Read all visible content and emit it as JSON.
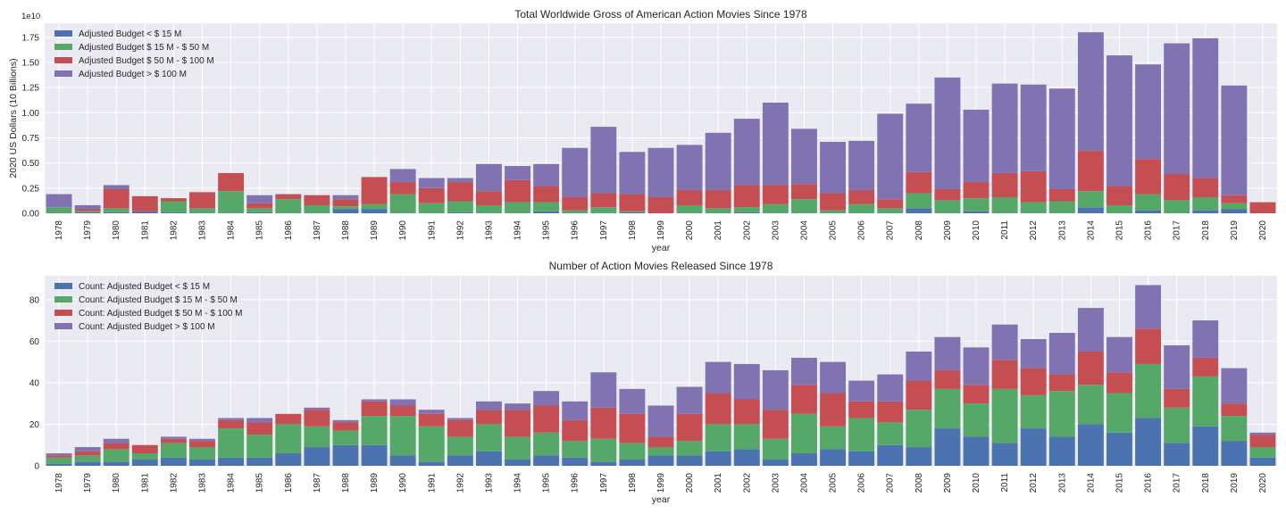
{
  "chart_data": [
    {
      "type": "bar",
      "stacked": true,
      "title": "Total Worldwide Gross of American Action Movies Since 1978",
      "xlabel": "year",
      "ylabel": "2020 US Dollars (10 Billions)",
      "offset_label": "1e10",
      "ylim": [
        0,
        1.89
      ],
      "yticks": [
        "0.00",
        "0.25",
        "0.50",
        "0.75",
        "1.00",
        "1.25",
        "1.50",
        "1.75"
      ],
      "grid": true,
      "legend_position": "top-left",
      "categories": [
        "1978",
        "1979",
        "1980",
        "1981",
        "1982",
        "1983",
        "1984",
        "1985",
        "1986",
        "1987",
        "1988",
        "1989",
        "1990",
        "1991",
        "1992",
        "1993",
        "1994",
        "1995",
        "1996",
        "1997",
        "1998",
        "1999",
        "2000",
        "2001",
        "2002",
        "2003",
        "2004",
        "2005",
        "2006",
        "2007",
        "2008",
        "2009",
        "2010",
        "2011",
        "2012",
        "2013",
        "2014",
        "2015",
        "2016",
        "2017",
        "2018",
        "2019",
        "2020"
      ],
      "series": [
        {
          "name": "Adjusted Budget < $ 15 M",
          "color": "#4c72b0",
          "values": [
            0.0,
            0.01,
            0.01,
            0.02,
            0.01,
            0.0,
            0.0,
            0.01,
            0.0,
            0.0,
            0.04,
            0.04,
            0.0,
            0.0,
            0.01,
            0.0,
            0.0,
            0.02,
            0.0,
            0.0,
            0.01,
            0.0,
            0.0,
            0.0,
            0.01,
            0.0,
            0.0,
            0.0,
            0.0,
            0.0,
            0.05,
            0.0,
            0.02,
            0.0,
            0.0,
            0.0,
            0.06,
            0.0,
            0.03,
            0.0,
            0.03,
            0.04,
            0.0
          ]
        },
        {
          "name": "Adjusted Budget $ 15 M - $ 50 M",
          "color": "#55a868",
          "values": [
            0.06,
            0.01,
            0.04,
            0.0,
            0.11,
            0.05,
            0.22,
            0.04,
            0.14,
            0.08,
            0.03,
            0.05,
            0.19,
            0.1,
            0.11,
            0.08,
            0.11,
            0.09,
            0.03,
            0.06,
            0.01,
            0.0,
            0.08,
            0.05,
            0.05,
            0.09,
            0.14,
            0.03,
            0.09,
            0.05,
            0.15,
            0.13,
            0.13,
            0.16,
            0.11,
            0.12,
            0.16,
            0.08,
            0.16,
            0.13,
            0.13,
            0.06,
            0.0
          ]
        },
        {
          "name": "Adjusted Budget $ 50 M - $ 100 M",
          "color": "#c44e52",
          "values": [
            0.0,
            0.02,
            0.19,
            0.15,
            0.03,
            0.16,
            0.18,
            0.05,
            0.05,
            0.1,
            0.07,
            0.27,
            0.12,
            0.15,
            0.19,
            0.14,
            0.22,
            0.16,
            0.13,
            0.14,
            0.17,
            0.16,
            0.15,
            0.18,
            0.22,
            0.19,
            0.15,
            0.17,
            0.14,
            0.09,
            0.21,
            0.11,
            0.16,
            0.24,
            0.31,
            0.12,
            0.4,
            0.19,
            0.35,
            0.26,
            0.19,
            0.08,
            0.11
          ]
        },
        {
          "name": "Adjusted Budget > $ 100 M",
          "color": "#8172b2",
          "values": [
            0.13,
            0.04,
            0.04,
            0.0,
            0.0,
            0.0,
            0.0,
            0.08,
            0.0,
            0.0,
            0.04,
            0.0,
            0.13,
            0.1,
            0.04,
            0.27,
            0.14,
            0.22,
            0.49,
            0.66,
            0.42,
            0.49,
            0.45,
            0.57,
            0.66,
            0.82,
            0.55,
            0.51,
            0.49,
            0.85,
            0.68,
            1.11,
            0.72,
            0.89,
            0.86,
            1.0,
            1.18,
            1.3,
            0.94,
            1.3,
            1.39,
            1.09,
            0.0
          ]
        }
      ]
    },
    {
      "type": "bar",
      "stacked": true,
      "title": "Number of Action Movies Released Since 1978",
      "xlabel": "year",
      "ylabel": "",
      "ylim": [
        0,
        91.5
      ],
      "yticks": [
        "0",
        "20",
        "40",
        "60",
        "80"
      ],
      "grid": true,
      "legend_position": "top-left",
      "categories": [
        "1978",
        "1979",
        "1980",
        "1981",
        "1982",
        "1983",
        "1984",
        "1985",
        "1986",
        "1987",
        "1988",
        "1989",
        "1990",
        "1991",
        "1992",
        "1993",
        "1994",
        "1995",
        "1996",
        "1997",
        "1998",
        "1999",
        "2000",
        "2001",
        "2002",
        "2003",
        "2004",
        "2005",
        "2006",
        "2007",
        "2008",
        "2009",
        "2010",
        "2011",
        "2012",
        "2013",
        "2014",
        "2015",
        "2016",
        "2017",
        "2018",
        "2019",
        "2020"
      ],
      "series": [
        {
          "name": "Count: Adjusted Budget < $ 15 M",
          "color": "#4c72b0",
          "values": [
            1,
            2,
            2,
            3,
            4,
            3,
            4,
            4,
            6,
            9,
            10,
            10,
            5,
            2,
            5,
            7,
            3,
            5,
            4,
            2,
            3,
            5,
            5,
            7,
            8,
            3,
            6,
            8,
            7,
            10,
            9,
            18,
            14,
            11,
            18,
            14,
            20,
            16,
            23,
            11,
            19,
            12,
            4
          ]
        },
        {
          "name": "Count: Adjusted Budget $ 15 M - $ 50 M",
          "color": "#55a868",
          "values": [
            3,
            3,
            6,
            3,
            7,
            6,
            14,
            11,
            14,
            10,
            7,
            14,
            19,
            17,
            9,
            13,
            11,
            11,
            8,
            11,
            8,
            4,
            7,
            13,
            12,
            10,
            19,
            11,
            16,
            11,
            18,
            19,
            16,
            26,
            16,
            22,
            19,
            19,
            26,
            17,
            24,
            12,
            5
          ]
        },
        {
          "name": "Count: Adjusted Budget $ 50 M - $ 100 M",
          "color": "#c44e52",
          "values": [
            1,
            2,
            3,
            4,
            2,
            3,
            4,
            6,
            5,
            8,
            4,
            7,
            5,
            6,
            8,
            7,
            13,
            13,
            10,
            15,
            14,
            5,
            13,
            15,
            12,
            14,
            14,
            16,
            8,
            10,
            14,
            9,
            9,
            14,
            13,
            8,
            16,
            10,
            17,
            9,
            9,
            6,
            6
          ]
        },
        {
          "name": "Count: Adjusted Budget > $ 100 M",
          "color": "#8172b2",
          "values": [
            1,
            2,
            2,
            0,
            1,
            1,
            1,
            2,
            0,
            1,
            1,
            1,
            3,
            2,
            1,
            4,
            3,
            7,
            9,
            17,
            12,
            15,
            13,
            15,
            17,
            19,
            13,
            15,
            10,
            13,
            14,
            16,
            18,
            17,
            14,
            20,
            21,
            17,
            21,
            21,
            18,
            17,
            1
          ]
        }
      ]
    }
  ]
}
